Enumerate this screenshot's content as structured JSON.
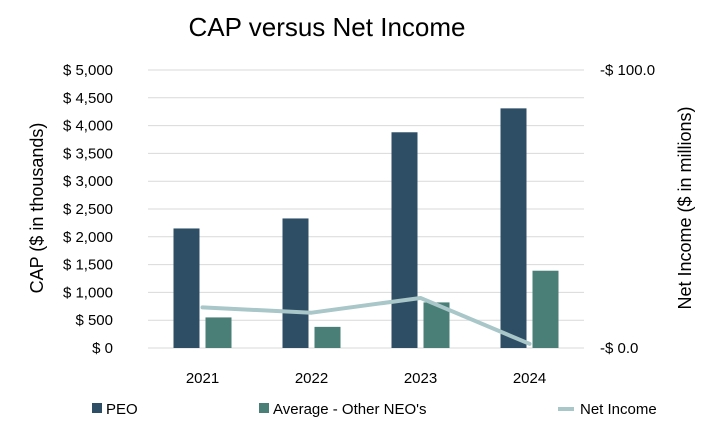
{
  "chart_data": {
    "type": "bar",
    "title": "CAP versus Net Income",
    "categories": [
      "2021",
      "2022",
      "2023",
      "2024"
    ],
    "series": [
      {
        "name": "PEO",
        "kind": "bar",
        "axis": "left",
        "color": "#2e4e66",
        "values": [
          2150,
          2330,
          3880,
          4310
        ]
      },
      {
        "name": "Average - Other NEO's",
        "kind": "bar",
        "axis": "left",
        "color": "#4a7f77",
        "values": [
          550,
          380,
          820,
          1390
        ]
      },
      {
        "name": "Net Income",
        "kind": "line",
        "axis": "right",
        "color": "#a9c6c8",
        "values": [
          14.6,
          12.7,
          18.0,
          1.5
        ]
      }
    ],
    "ylabel": "CAP ($ in thousands)",
    "y2label": "Net Income ($ in millions)",
    "ylim": [
      0,
      5000
    ],
    "y2lim": [
      0,
      100
    ],
    "yticks": [
      0,
      500,
      1000,
      1500,
      2000,
      2500,
      3000,
      3500,
      4000,
      4500,
      5000
    ],
    "ytick_labels": [
      "$ 0",
      "$ 500",
      "$ 1,000",
      "$ 1,500",
      "$ 2,000",
      "$ 2,500",
      "$ 3,000",
      "$ 3,500",
      "$ 4,000",
      "$ 4,500",
      "$ 5,000"
    ],
    "y2ticks": [
      0,
      100
    ],
    "y2tick_labels": [
      "-$ 0.0",
      "-$ 100.0"
    ],
    "grid": true,
    "legend_position": "bottom"
  }
}
